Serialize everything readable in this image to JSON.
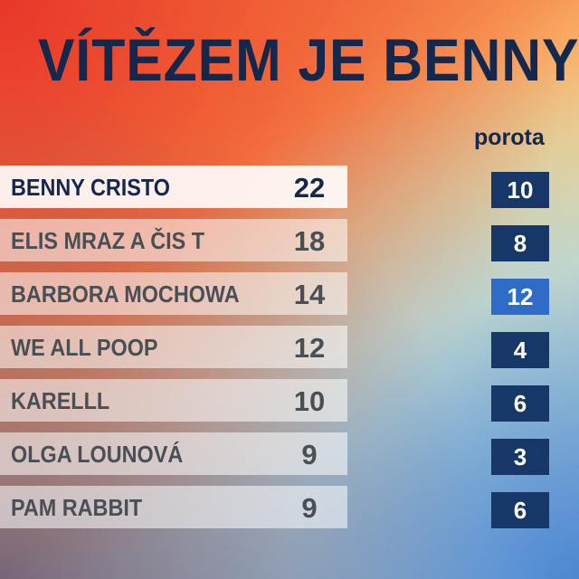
{
  "title": "VÍTĚZEM JE BENNY",
  "column_header": "porota",
  "colors": {
    "navy": "#13284c",
    "jury_box": "#163767",
    "jury_highlight": "#2e6cc7"
  },
  "rows": [
    {
      "name": "BENNY CRISTO",
      "points": "22",
      "jury": "10"
    },
    {
      "name": "ELIS MRAZ A ČIS T",
      "points": "18",
      "jury": "8"
    },
    {
      "name": "BARBORA MOCHOWA",
      "points": "14",
      "jury": "12"
    },
    {
      "name": "WE ALL POOP",
      "points": "12",
      "jury": "4"
    },
    {
      "name": "KARELLL",
      "points": "10",
      "jury": "6"
    },
    {
      "name": "OLGA LOUNOVÁ",
      "points": "9",
      "jury": "3"
    },
    {
      "name": "PAM RABBIT",
      "points": "9",
      "jury": "6"
    }
  ]
}
